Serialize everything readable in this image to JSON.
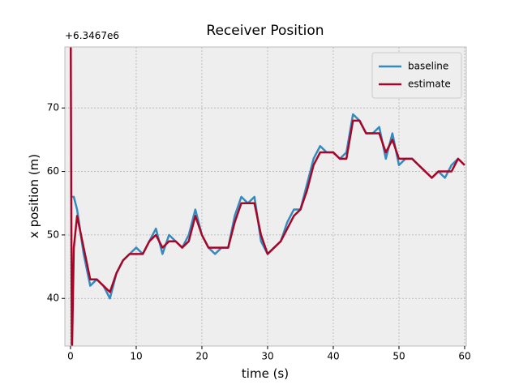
{
  "chart_data": {
    "type": "line",
    "title": "Receiver Position",
    "xlabel": "time (s)",
    "ylabel": "x position (m)",
    "offset_text": "+6.3467e6",
    "x": [
      0,
      0.2,
      0.5,
      1,
      2,
      3,
      4,
      5,
      6,
      7,
      8,
      9,
      10,
      11,
      12,
      13,
      14,
      15,
      16,
      17,
      18,
      19,
      20,
      21,
      22,
      23,
      24,
      25,
      26,
      27,
      28,
      29,
      30,
      31,
      32,
      33,
      34,
      35,
      36,
      37,
      38,
      39,
      40,
      41,
      42,
      43,
      44,
      45,
      46,
      47,
      48,
      49,
      50,
      51,
      52,
      53,
      54,
      55,
      56,
      57,
      58,
      59,
      60
    ],
    "series": [
      {
        "name": "baseline",
        "color": "#348ABD",
        "values": [
          56,
          56,
          56,
          54,
          47,
          42,
          43,
          42,
          40,
          44,
          46,
          47,
          48,
          47,
          49,
          51,
          47,
          50,
          49,
          48,
          50,
          54,
          50,
          48,
          47,
          48,
          48,
          53,
          56,
          55,
          56,
          49,
          47,
          48,
          49,
          52,
          54,
          54,
          58,
          62,
          64,
          63,
          63,
          62,
          63,
          69,
          68,
          66,
          66,
          67,
          62,
          66,
          61,
          62,
          62,
          61,
          60,
          59,
          60,
          59,
          61,
          62,
          61
        ]
      },
      {
        "name": "estimate",
        "color": "#A60628",
        "values": [
          90,
          30,
          48,
          53,
          48,
          43,
          43,
          42,
          41,
          44,
          46,
          47,
          47,
          47,
          49,
          50,
          48,
          49,
          49,
          48,
          49,
          53,
          50,
          48,
          48,
          48,
          48,
          52,
          55,
          55,
          55,
          50,
          47,
          48,
          49,
          51,
          53,
          54,
          57,
          61,
          63,
          63,
          63,
          62,
          62,
          68,
          68,
          66,
          66,
          66,
          63,
          65,
          62,
          62,
          62,
          61,
          60,
          59,
          60,
          60,
          60,
          62,
          61
        ]
      }
    ],
    "xlim": [
      -0.86,
      60.25
    ],
    "ylim": [
      32.5,
      79.6
    ],
    "xticks": [
      0,
      10,
      20,
      30,
      40,
      50,
      60
    ],
    "yticks": [
      40,
      50,
      60,
      70
    ],
    "grid": true,
    "legend": "upper right"
  }
}
